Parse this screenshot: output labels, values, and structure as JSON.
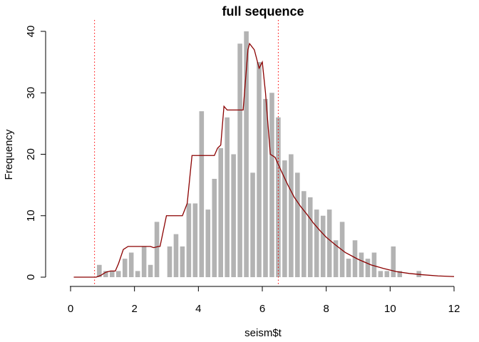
{
  "chart_data": {
    "type": "bar",
    "title": "full sequence",
    "xlabel": "seism$t",
    "ylabel": "Frequency",
    "xlim": [
      0,
      12
    ],
    "ylim": [
      0,
      40
    ],
    "xticks": [
      "0",
      "2",
      "4",
      "6",
      "8",
      "10",
      "12"
    ],
    "yticks": [
      "0",
      "10",
      "20",
      "30",
      "40"
    ],
    "bin_width": 0.2,
    "series": [
      {
        "name": "histogram",
        "color": "#b3b3b3",
        "bins_start": [
          0.8,
          1.0,
          1.2,
          1.4,
          1.6,
          1.8,
          2.0,
          2.2,
          2.4,
          2.6,
          2.8,
          3.0,
          3.2,
          3.4,
          3.6,
          3.8,
          4.0,
          4.2,
          4.4,
          4.6,
          4.8,
          5.0,
          5.2,
          5.4,
          5.6,
          5.8,
          6.0,
          6.2,
          6.4,
          6.6,
          6.8,
          7.0,
          7.2,
          7.4,
          7.6,
          7.8,
          8.0,
          8.2,
          8.4,
          8.6,
          8.8,
          9.0,
          9.2,
          9.4,
          9.6,
          9.8,
          10.0,
          10.2,
          10.4,
          10.6,
          10.8
        ],
        "values": [
          2,
          1,
          1,
          1,
          3,
          4,
          1,
          5,
          2,
          9,
          0,
          5,
          7,
          5,
          12,
          12,
          27,
          11,
          16,
          21,
          26,
          20,
          38,
          40,
          17,
          35,
          29,
          30,
          26,
          19,
          20,
          17,
          14,
          13,
          11,
          10,
          11,
          6,
          9,
          3,
          6,
          4,
          3,
          4,
          1,
          1,
          5,
          1,
          0,
          0,
          1
        ]
      }
    ],
    "curve": {
      "name": "density estimate",
      "color": "#8b0000",
      "x": [
        0.1,
        0.8,
        0.95,
        1.1,
        1.25,
        1.4,
        1.5,
        1.65,
        1.8,
        2.0,
        2.2,
        2.35,
        2.5,
        2.6,
        2.75,
        2.8,
        3.0,
        3.3,
        3.5,
        3.65,
        3.8,
        4.0,
        4.3,
        4.5,
        4.6,
        4.7,
        4.8,
        4.9,
        5.0,
        5.2,
        5.4,
        5.55,
        5.6,
        5.75,
        5.9,
        6.0,
        6.1,
        6.25,
        6.4,
        6.6,
        6.8,
        7.0,
        7.2,
        7.4,
        7.6,
        7.8,
        8.0,
        8.3,
        8.6,
        9.0,
        9.4,
        9.8,
        10.2,
        10.6,
        11.0,
        11.5,
        12.0
      ],
      "y": [
        0,
        0,
        0.3,
        0.8,
        1.0,
        1.0,
        2.2,
        4.5,
        5.0,
        5.0,
        5.0,
        5.0,
        5.0,
        4.8,
        5.0,
        5.0,
        10.0,
        10.0,
        10.0,
        12.0,
        19.8,
        19.8,
        19.8,
        19.8,
        21.0,
        21.5,
        27.8,
        27.2,
        27.2,
        27.2,
        27.2,
        37.0,
        38.0,
        37.0,
        34.0,
        35.0,
        30.0,
        20.0,
        19.5,
        17.2,
        15.0,
        13.0,
        11.5,
        10.2,
        8.8,
        7.6,
        6.5,
        5.2,
        4.0,
        2.9,
        2.0,
        1.4,
        0.9,
        0.6,
        0.4,
        0.2,
        0.1
      ]
    },
    "reference_lines": {
      "x": [
        0.75,
        6.5
      ],
      "color": "#ff0000",
      "style": "dotted"
    }
  }
}
